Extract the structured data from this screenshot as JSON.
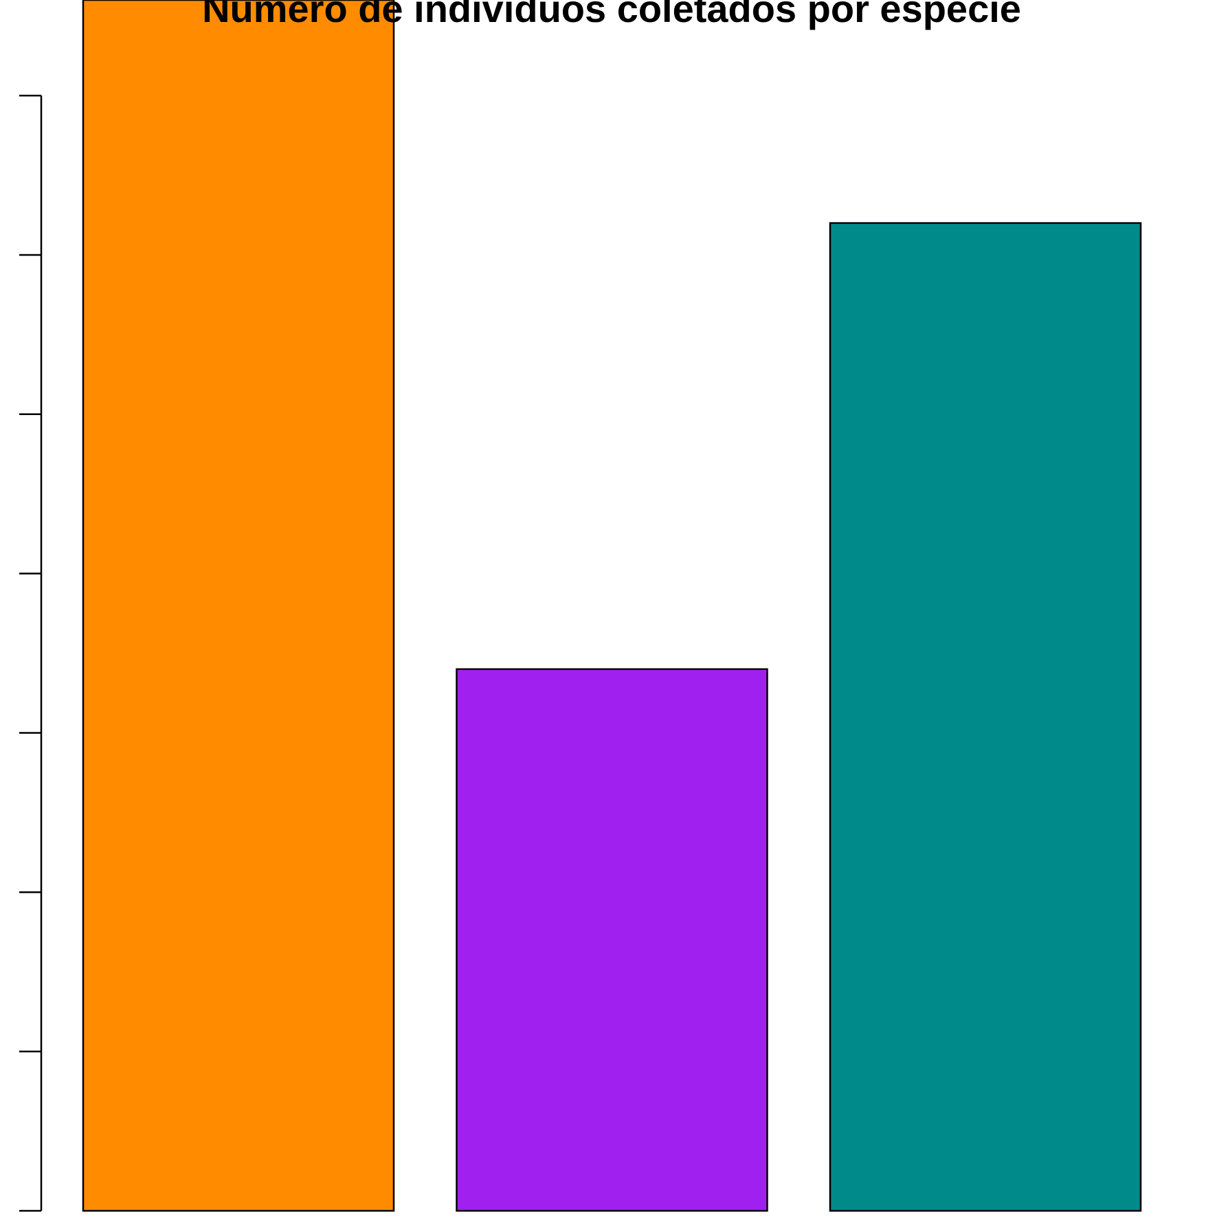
{
  "chart_data": {
    "type": "bar",
    "title": "Número de indivíduos coletados por espécie",
    "categories": [
      null,
      null,
      null
    ],
    "values": [
      7.6,
      3.4,
      6.2
    ],
    "colors": [
      "#ff8c00",
      "#a020f0",
      "#008b8b"
    ],
    "ylim": [
      0,
      7.6
    ],
    "yticks": [
      0,
      1,
      2,
      3,
      4,
      5,
      6,
      7
    ]
  }
}
